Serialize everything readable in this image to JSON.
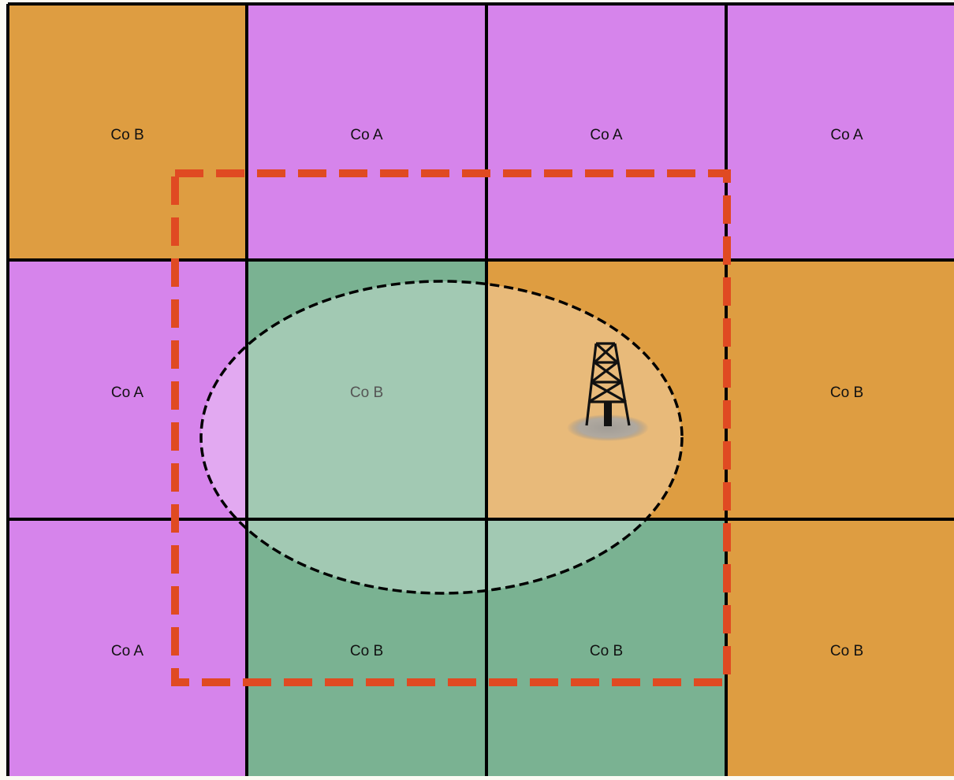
{
  "legend_colors": {
    "co_a": "#d684eb",
    "co_b_orange": "#de9d41",
    "co_b_green": "#7ab292"
  },
  "tracts": [
    {
      "label": "Co B",
      "color": "#de9d41"
    },
    {
      "label": "Co A",
      "color": "#d684eb"
    },
    {
      "label": "Co A",
      "color": "#d684eb"
    },
    {
      "label": "Co A",
      "color": "#d684eb"
    },
    {
      "label": "Co A",
      "color": "#d684eb"
    },
    {
      "label": "Co B",
      "color": "#7ab292"
    },
    {
      "label": "",
      "color": "#de9d41"
    },
    {
      "label": "Co B",
      "color": "#de9d41"
    },
    {
      "label": "Co A",
      "color": "#d684eb"
    },
    {
      "label": "Co B",
      "color": "#7ab292"
    },
    {
      "label": "Co B",
      "color": "#7ab292"
    },
    {
      "label": "Co B",
      "color": "#de9d41"
    }
  ],
  "unit_boundary": {
    "color": "#e04a22",
    "style": "dashed"
  },
  "drainage_area": {
    "color": "#000000",
    "style": "dashed"
  },
  "well": {
    "icon": "oil-derrick-icon"
  }
}
